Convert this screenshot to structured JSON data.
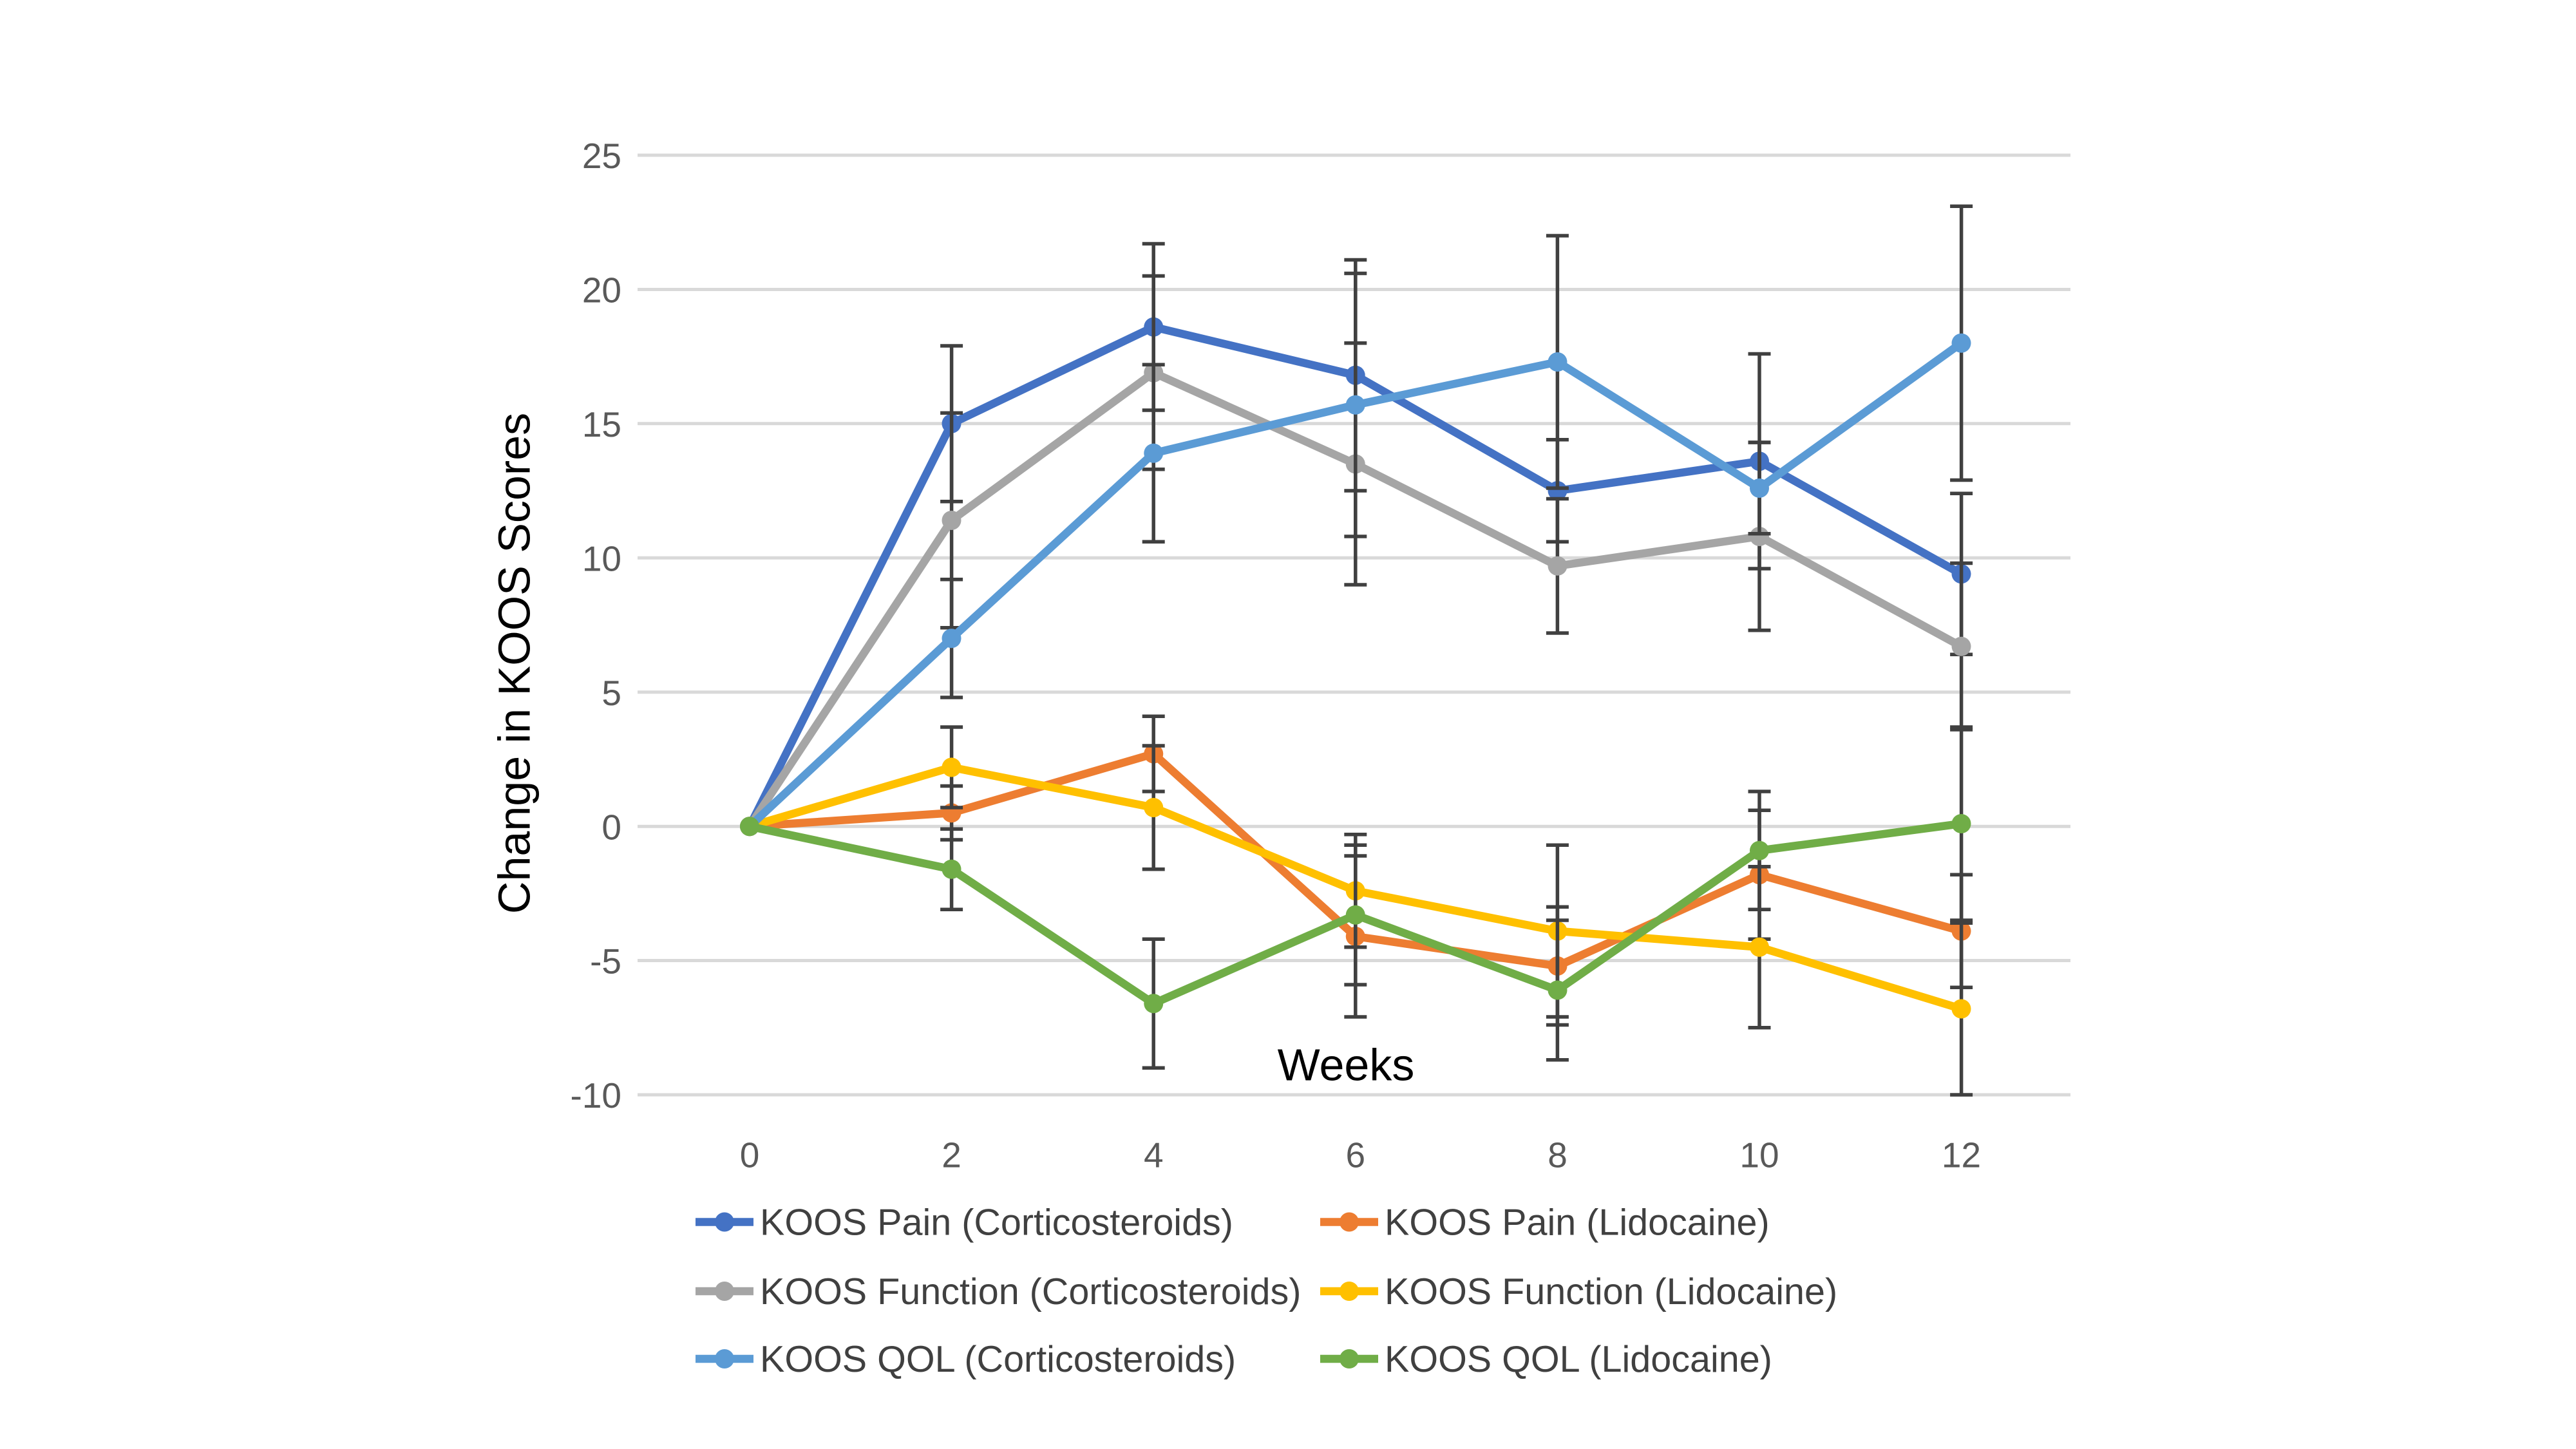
{
  "page": {
    "background": "#ffffff"
  },
  "chart_data": {
    "type": "line",
    "title": "",
    "xlabel": "Weeks",
    "ylabel": "Change in KOOS Scores",
    "x": [
      0,
      2,
      4,
      6,
      8,
      10,
      12
    ],
    "xtick_labels": [
      "0",
      "2",
      "4",
      "6",
      "8",
      "10",
      "12"
    ],
    "ylim": [
      -10,
      25
    ],
    "ytick_values": [
      25,
      20,
      15,
      10,
      5,
      0,
      -5,
      -10
    ],
    "grid": true,
    "legend_position": "bottom",
    "legend_columns": 2,
    "series": [
      {
        "name": "KOOS Pain (Corticosteroids)",
        "color": "#4472C4",
        "values": [
          0,
          15.0,
          18.6,
          16.8,
          12.5,
          13.6,
          9.4
        ],
        "errors": [
          0,
          2.9,
          3.1,
          4.3,
          1.9,
          4.0,
          3.0
        ]
      },
      {
        "name": "KOOS Pain (Lidocaine)",
        "color": "#ED7D31",
        "values": [
          0,
          0.5,
          2.7,
          -4.1,
          -5.2,
          -1.8,
          -3.9
        ],
        "errors": [
          0,
          1.0,
          1.4,
          3.0,
          2.2,
          2.4,
          2.1
        ]
      },
      {
        "name": "KOOS Function (Corticosteroids)",
        "color": "#A5A5A5",
        "values": [
          0,
          11.4,
          16.9,
          13.5,
          9.7,
          10.8,
          6.7
        ],
        "errors": [
          0,
          4.0,
          3.6,
          4.5,
          2.5,
          3.5,
          3.1
        ]
      },
      {
        "name": "KOOS Function (Lidocaine)",
        "color": "#FFC000",
        "values": [
          0,
          2.2,
          0.7,
          -2.4,
          -3.9,
          -4.5,
          -6.8
        ],
        "errors": [
          0,
          1.5,
          2.3,
          2.1,
          3.2,
          3.0,
          3.2
        ]
      },
      {
        "name": "KOOS QOL (Corticosteroids)",
        "color": "#5B9BD5",
        "values": [
          0,
          7.0,
          13.9,
          15.7,
          17.3,
          12.6,
          18.0
        ],
        "errors": [
          0,
          2.2,
          3.3,
          4.9,
          4.7,
          1.7,
          5.1
        ]
      },
      {
        "name": "KOOS QOL (Lidocaine)",
        "color": "#70AD47",
        "values": [
          0,
          -1.6,
          -6.6,
          -3.3,
          -6.1,
          -0.9,
          0.1
        ],
        "errors": [
          0,
          1.5,
          2.4,
          2.6,
          2.6,
          2.2,
          3.6
        ]
      }
    ],
    "styles": {
      "grid_color": "#D9D9D9",
      "tick_text_color": "#595959",
      "axis_title_color": "#000000",
      "legend_text_color": "#404040",
      "error_bar_color": "#404040",
      "plot_background": "#ffffff"
    }
  }
}
